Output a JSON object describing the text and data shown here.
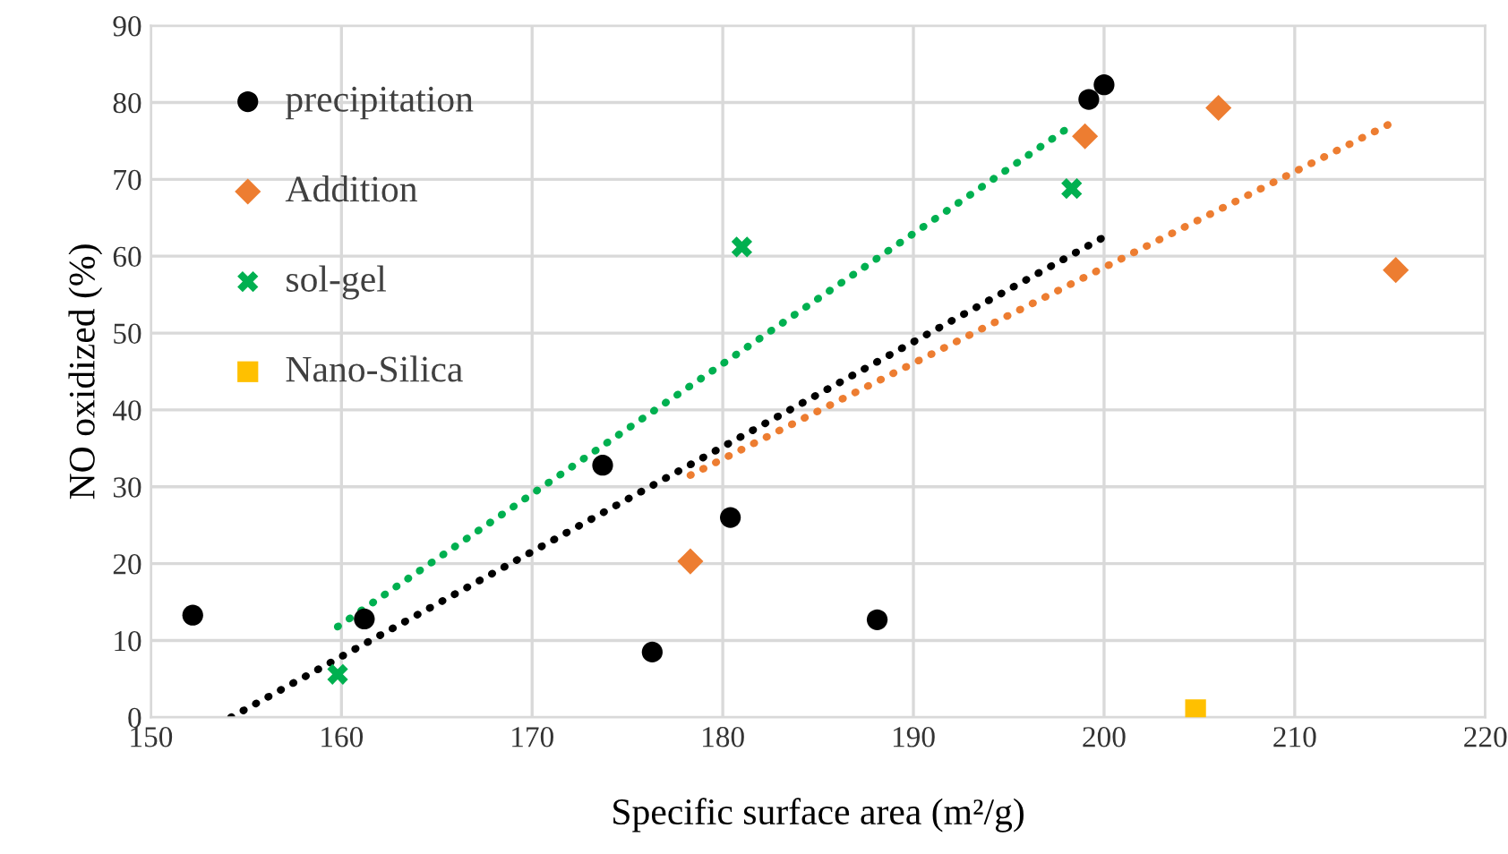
{
  "chart_data": {
    "type": "scatter",
    "xlabel": "Specific surface area (m²/g)",
    "ylabel": "NO oxidized (%)",
    "xlim": [
      150,
      220
    ],
    "xticks": [
      150,
      160,
      170,
      180,
      190,
      200,
      210,
      220
    ],
    "ylim": [
      0,
      90
    ],
    "yticks": [
      0,
      10,
      20,
      30,
      40,
      50,
      60,
      70,
      80,
      90
    ],
    "grid": true,
    "legend": "top left",
    "series": [
      {
        "name": "precipitation",
        "color": "#000000",
        "marker": "circle",
        "x": [
          152.2,
          161.2,
          173.7,
          176.3,
          180.4,
          188.1,
          199.2,
          200.0
        ],
        "values": [
          13.3,
          12.8,
          32.8,
          8.5,
          26.0,
          12.7,
          80.4,
          82.3
        ]
      },
      {
        "name": "Addition",
        "color": "#ed7d31",
        "marker": "diamond",
        "x": [
          178.3,
          199.0,
          206.0,
          215.3
        ],
        "values": [
          20.3,
          75.6,
          79.3,
          58.2
        ]
      },
      {
        "name": "sol-gel",
        "color": "#00b050",
        "marker": "cross",
        "x": [
          159.8,
          181.0,
          198.3
        ],
        "values": [
          5.6,
          61.2,
          68.8
        ]
      },
      {
        "name": "Nano-Silica",
        "color": "#ffc000",
        "marker": "square",
        "x": [
          204.8
        ],
        "values": [
          1.0
        ]
      },
      {
        "type": "line",
        "color": "#000000",
        "line_style": "dotted",
        "x": [
          154.2,
          200.0
        ],
        "values": [
          0.0,
          62.5
        ]
      },
      {
        "type": "line",
        "color": "#ed7d31",
        "line_style": "dotted",
        "x": [
          178.3,
          215.3
        ],
        "values": [
          31.5,
          77.6
        ]
      },
      {
        "type": "line",
        "color": "#00b050",
        "line_style": "dotted",
        "x": [
          159.8,
          198.3
        ],
        "values": [
          11.8,
          77.0
        ]
      }
    ]
  }
}
